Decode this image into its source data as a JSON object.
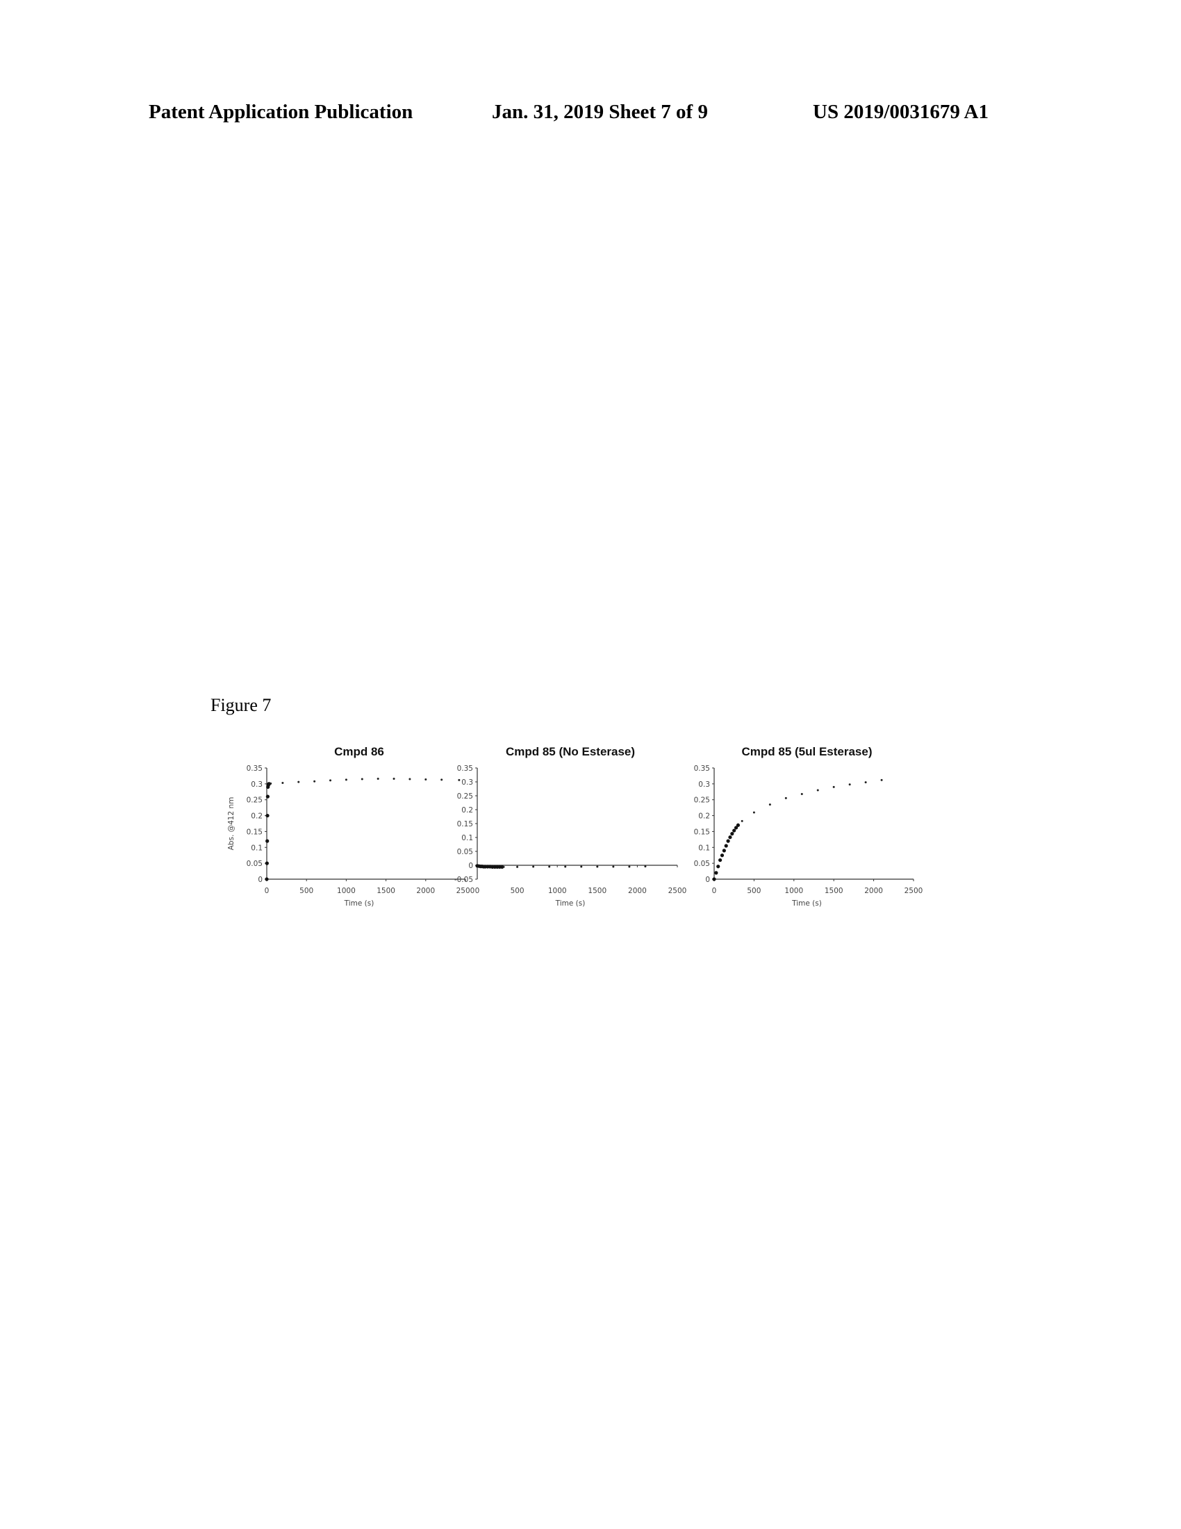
{
  "header": {
    "left": "Patent Application Publication",
    "middle": "Jan. 31, 2019  Sheet 7 of 9",
    "right": "US 2019/0031679 A1"
  },
  "figure_label": "Figure 7",
  "chart_data": [
    {
      "type": "scatter",
      "title": "Cmpd 86",
      "xlabel": "Time (s)",
      "ylabel": "Abs. @412 nm",
      "xlim": [
        0,
        2500
      ],
      "ylim": [
        0,
        0.35
      ],
      "xticks": [
        0,
        500,
        1000,
        1500,
        2000,
        2500
      ],
      "yticks": [
        0,
        0.05,
        0.1,
        0.15,
        0.2,
        0.25,
        0.3,
        0.35
      ],
      "grid": false,
      "series": [
        {
          "style": "dense-early",
          "points": [
            [
              0,
              0
            ],
            [
              3,
              0.05
            ],
            [
              6,
              0.12
            ],
            [
              9,
              0.2
            ],
            [
              12,
              0.26
            ],
            [
              15,
              0.29
            ],
            [
              18,
              0.295
            ],
            [
              22,
              0.298
            ],
            [
              26,
              0.3
            ],
            [
              30,
              0.3
            ]
          ]
        },
        {
          "style": "dotted",
          "points": [
            [
              50,
              0.301
            ],
            [
              200,
              0.303
            ],
            [
              400,
              0.306
            ],
            [
              600,
              0.308
            ],
            [
              800,
              0.311
            ],
            [
              1000,
              0.313
            ],
            [
              1200,
              0.315
            ],
            [
              1400,
              0.316
            ],
            [
              1600,
              0.316
            ],
            [
              1800,
              0.315
            ],
            [
              2000,
              0.314
            ],
            [
              2200,
              0.313
            ],
            [
              2420,
              0.312
            ]
          ]
        }
      ]
    },
    {
      "type": "scatter",
      "title": "Cmpd 85 (No Esterase)",
      "xlabel": "Time (s)",
      "ylabel": "",
      "xlim": [
        0,
        2500
      ],
      "ylim": [
        -0.05,
        0.35
      ],
      "xticks": [
        0,
        500,
        1000,
        1500,
        2000,
        2500
      ],
      "yticks": [
        -0.05,
        0,
        0.05,
        0.1,
        0.15,
        0.2,
        0.25,
        0.3,
        0.35
      ],
      "grid": false,
      "series": [
        {
          "style": "dense-early",
          "points": [
            [
              0,
              -0.002
            ],
            [
              20,
              -0.003
            ],
            [
              40,
              -0.004
            ],
            [
              60,
              -0.004
            ],
            [
              80,
              -0.005
            ],
            [
              100,
              -0.005
            ],
            [
              130,
              -0.005
            ],
            [
              160,
              -0.005
            ],
            [
              190,
              -0.006
            ],
            [
              220,
              -0.006
            ],
            [
              250,
              -0.006
            ],
            [
              280,
              -0.006
            ],
            [
              310,
              -0.006
            ]
          ]
        },
        {
          "style": "dotted",
          "points": [
            [
              330,
              -0.006
            ],
            [
              500,
              -0.006
            ],
            [
              700,
              -0.005
            ],
            [
              900,
              -0.005
            ],
            [
              1100,
              -0.005
            ],
            [
              1300,
              -0.005
            ],
            [
              1500,
              -0.005
            ],
            [
              1700,
              -0.005
            ],
            [
              1900,
              -0.005
            ],
            [
              2100,
              -0.004
            ]
          ]
        }
      ]
    },
    {
      "type": "scatter",
      "title": "Cmpd 85 (5ul Esterase)",
      "xlabel": "Time (s)",
      "ylabel": "",
      "xlim": [
        0,
        2500
      ],
      "ylim": [
        0,
        0.35
      ],
      "xticks": [
        0,
        500,
        1000,
        1500,
        2000,
        2500
      ],
      "yticks": [
        0,
        0.05,
        0.1,
        0.15,
        0.2,
        0.25,
        0.3,
        0.35
      ],
      "grid": false,
      "series": [
        {
          "style": "dense-early",
          "points": [
            [
              0,
              0
            ],
            [
              25,
              0.02
            ],
            [
              50,
              0.04
            ],
            [
              75,
              0.06
            ],
            [
              100,
              0.075
            ],
            [
              125,
              0.09
            ],
            [
              150,
              0.105
            ],
            [
              175,
              0.12
            ],
            [
              200,
              0.132
            ],
            [
              225,
              0.143
            ],
            [
              250,
              0.153
            ],
            [
              275,
              0.162
            ],
            [
              300,
              0.17
            ]
          ]
        },
        {
          "style": "dotted",
          "points": [
            [
              350,
              0.183
            ],
            [
              500,
              0.21
            ],
            [
              700,
              0.235
            ],
            [
              900,
              0.255
            ],
            [
              1100,
              0.268
            ],
            [
              1300,
              0.28
            ],
            [
              1500,
              0.29
            ],
            [
              1700,
              0.298
            ],
            [
              1900,
              0.305
            ],
            [
              2100,
              0.312
            ]
          ]
        }
      ]
    }
  ]
}
